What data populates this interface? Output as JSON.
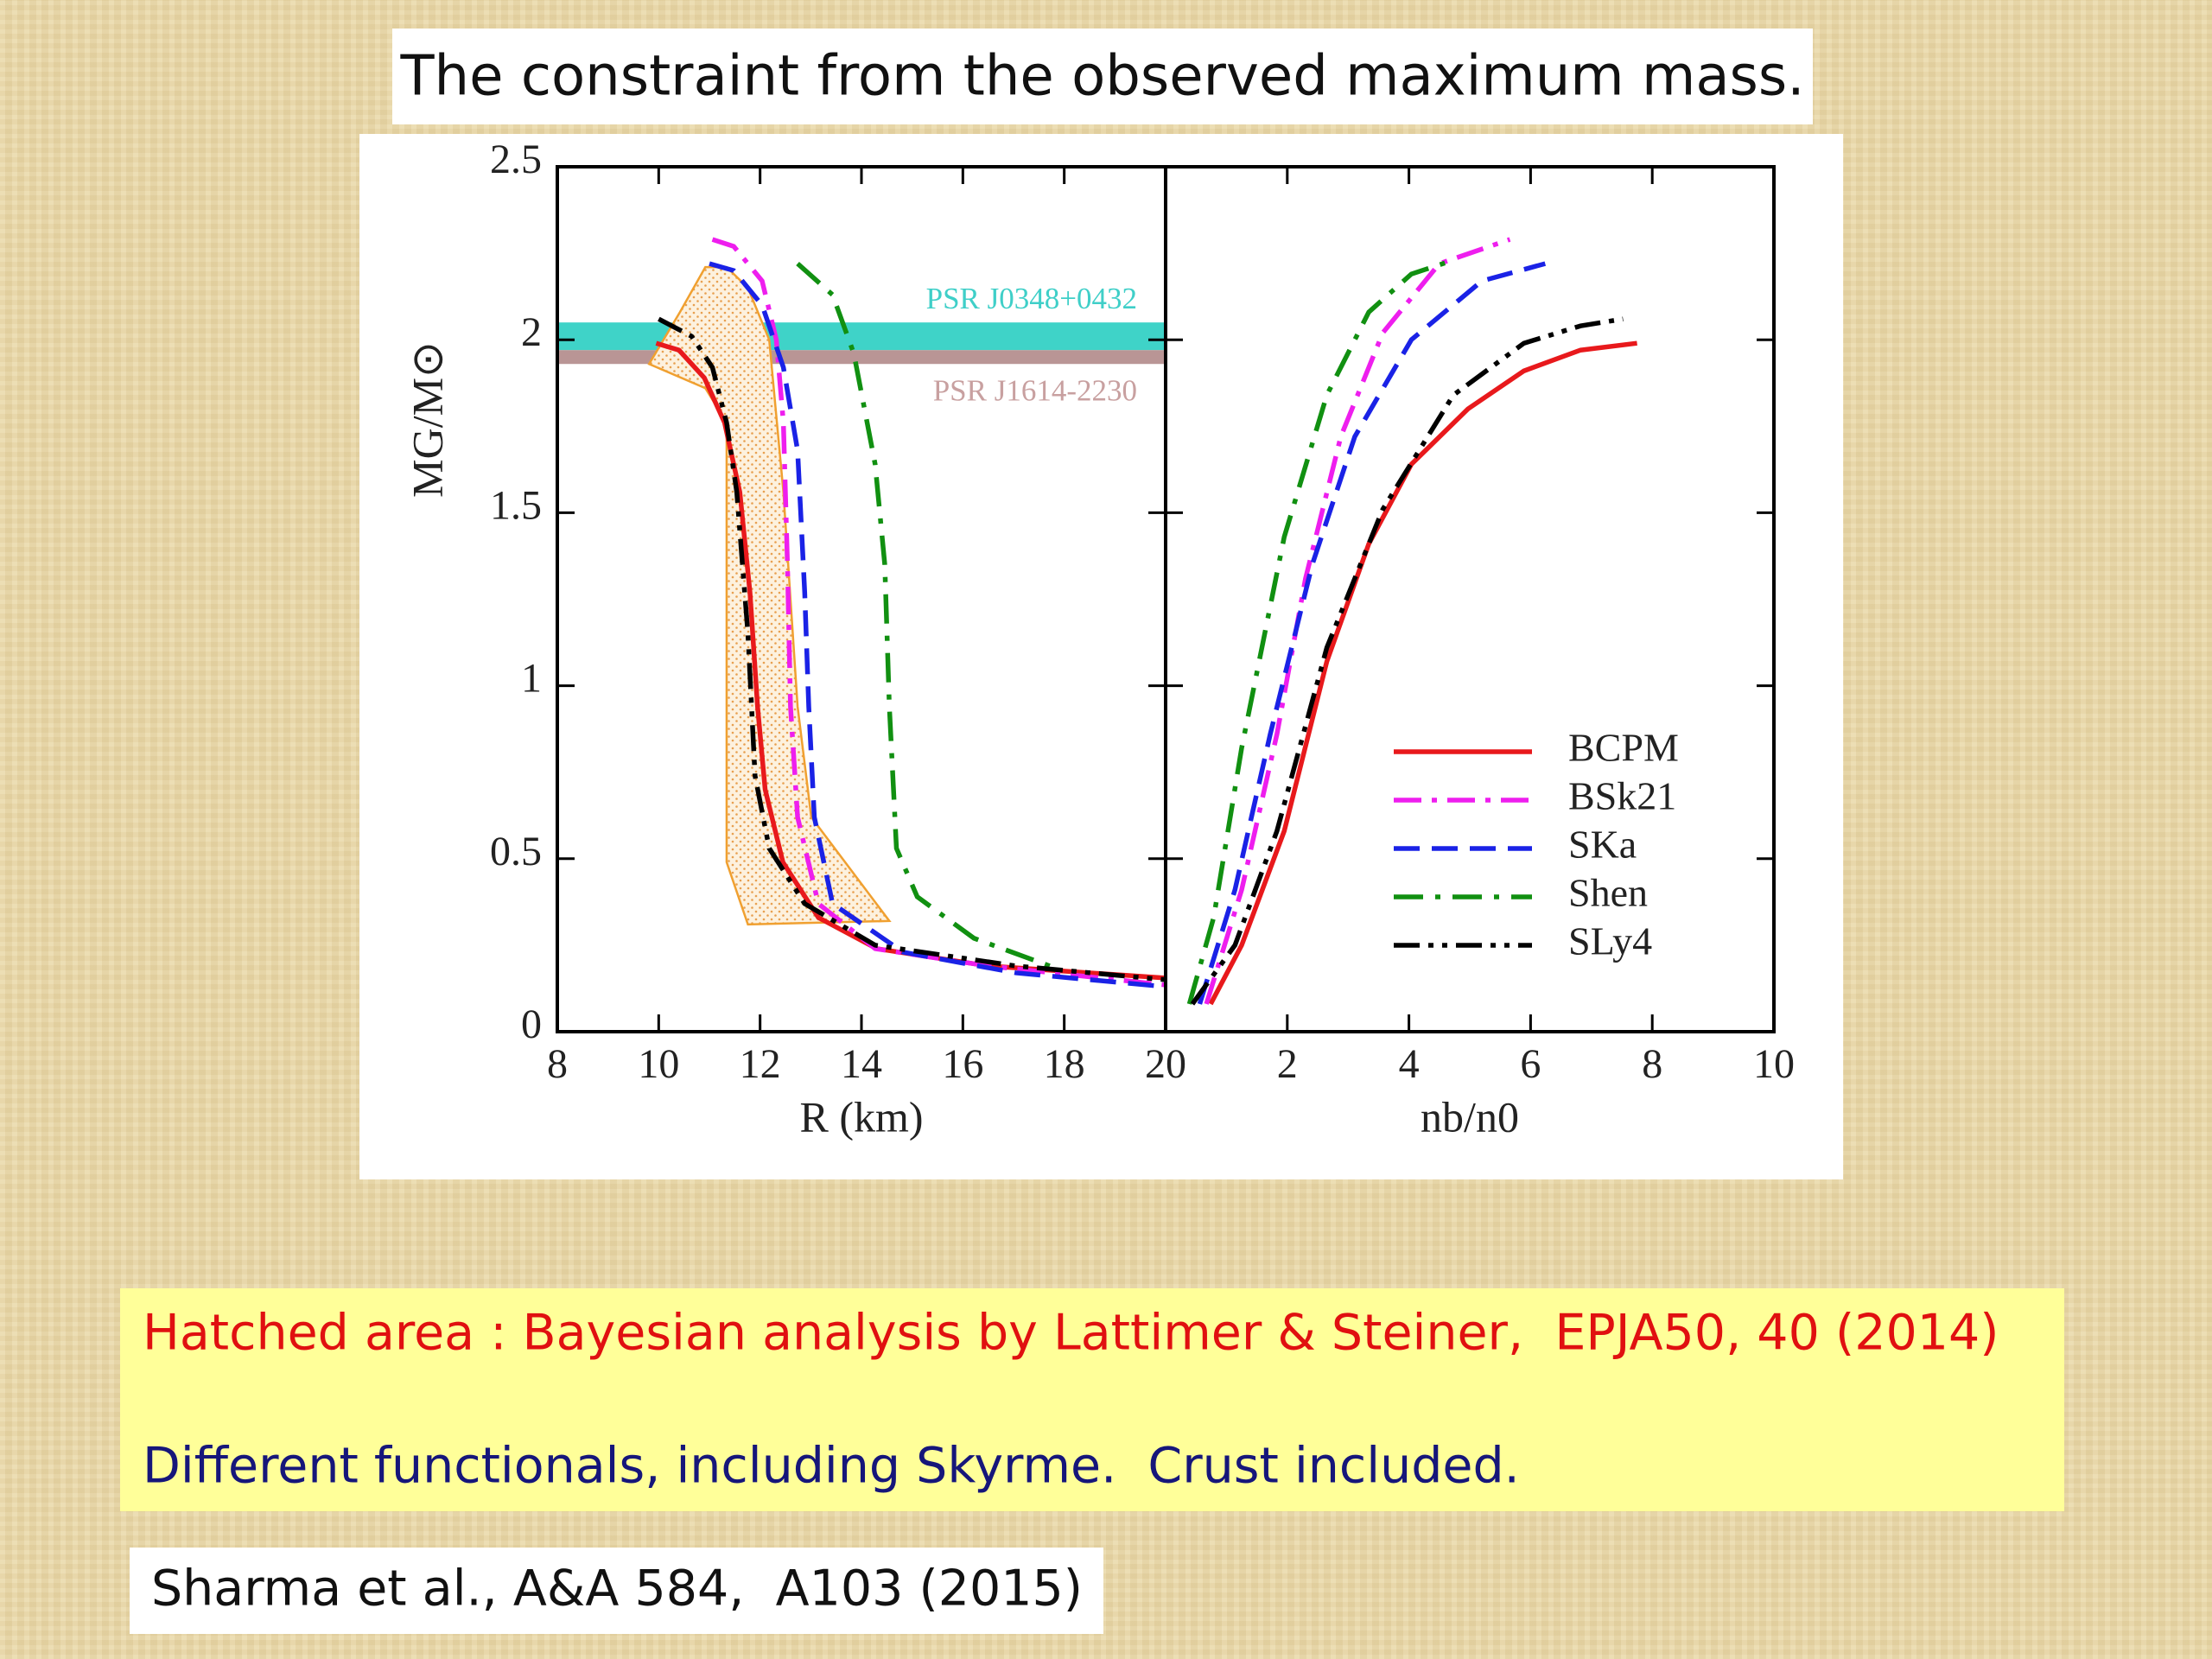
{
  "slide": {
    "title": "The constraint from the observed maximum mass.",
    "notes": [
      "Hatched area : Bayesian analysis by Lattimer & Steiner,  EPJA50, 40 (2014)",
      "Different functionals, including Skyrme.  Crust included."
    ],
    "citation": "Sharma et al., A&A 584,  A103 (2015)"
  },
  "chart_data": [
    {
      "type": "line",
      "xlabel": "R (km)",
      "ylabel": "MG/M⊙",
      "xlim": [
        8,
        20
      ],
      "ylim": [
        0,
        2.5
      ],
      "xticks": [
        8,
        10,
        12,
        14,
        16,
        18,
        20
      ],
      "yticks": [
        0,
        0.5,
        1,
        1.5,
        2,
        2.5
      ],
      "bands": [
        {
          "label": "PSR J0348+0432",
          "range": [
            1.97,
            2.05
          ],
          "color": "#3fd3c8",
          "label_color": "#3fcfc8"
        },
        {
          "label": "PSR J1614-2230",
          "range": [
            1.93,
            1.97
          ],
          "color": "#b99595",
          "label_color": "#c8a0a0"
        }
      ],
      "hatched_area": {
        "color": "#f0a030",
        "x": [
          9.81,
          10.42,
          10.92,
          11.34,
          11.76,
          12.18,
          12.46,
          12.74,
          13.01,
          14.55,
          11.76,
          11.34,
          11.34,
          11.34,
          10.92
        ],
        "y": [
          1.93,
          2.08,
          2.21,
          2.21,
          2.15,
          2.0,
          1.56,
          0.94,
          0.62,
          0.32,
          0.31,
          0.49,
          0.86,
          1.76,
          1.86
        ]
      },
      "series": [
        {
          "color": "#e8191c",
          "style": "solid",
          "x": [
            9.95,
            10.4,
            10.9,
            11.3,
            11.6,
            11.8,
            11.95,
            12.1,
            12.45,
            13.15,
            14.3,
            16.5,
            20
          ],
          "values": [
            1.99,
            1.97,
            1.89,
            1.76,
            1.56,
            1.27,
            0.94,
            0.7,
            0.49,
            0.33,
            0.24,
            0.19,
            0.155
          ]
        },
        {
          "color": "#ee1eee",
          "style": "dash-dot",
          "x": [
            11.06,
            11.48,
            12.04,
            12.32,
            12.46,
            12.54,
            12.6,
            12.74,
            13.15,
            14.27,
            16.5,
            20
          ],
          "values": [
            2.29,
            2.27,
            2.17,
            2.0,
            1.76,
            1.35,
            0.94,
            0.62,
            0.37,
            0.24,
            0.19,
            0.135
          ]
        },
        {
          "color": "#1a22e6",
          "style": "dash",
          "x": [
            11.0,
            11.48,
            12.04,
            12.46,
            12.74,
            12.88,
            12.96,
            13.07,
            13.43,
            14.82,
            17.05,
            20
          ],
          "values": [
            2.22,
            2.2,
            2.1,
            1.92,
            1.68,
            1.27,
            0.94,
            0.62,
            0.37,
            0.23,
            0.17,
            0.13
          ]
        },
        {
          "color": "#119011",
          "style": "dash-dot-wide",
          "x": [
            12.74,
            13.43,
            13.85,
            14.27,
            14.46,
            14.55,
            14.69,
            15.1,
            16.22,
            17.9
          ],
          "values": [
            2.22,
            2.13,
            1.96,
            1.64,
            1.35,
            0.94,
            0.53,
            0.39,
            0.27,
            0.18
          ]
        },
        {
          "color": "#000000",
          "style": "dash-dot-dot",
          "x": [
            10.0,
            10.65,
            11.06,
            11.34,
            11.54,
            11.76,
            11.9,
            12.18,
            12.88,
            14.27,
            17.05,
            20
          ],
          "values": [
            2.06,
            2.01,
            1.92,
            1.76,
            1.56,
            1.15,
            0.74,
            0.53,
            0.37,
            0.25,
            0.19,
            0.15
          ]
        }
      ]
    },
    {
      "type": "line",
      "xlabel": "nb/n0",
      "xlim": [
        0,
        10
      ],
      "ylim": [
        0,
        2.5
      ],
      "xticks": [
        2,
        4,
        6,
        8,
        10
      ],
      "legend": "lower right",
      "series": [
        {
          "name": "BCPM",
          "color": "#e8191c",
          "style": "solid",
          "x": [
            0.74,
            1.25,
            1.95,
            2.65,
            3.34,
            4.04,
            4.97,
            5.89,
            6.82,
            7.75
          ],
          "values": [
            0.08,
            0.25,
            0.58,
            1.07,
            1.41,
            1.64,
            1.8,
            1.91,
            1.97,
            1.99
          ]
        },
        {
          "name": "BSk21",
          "color": "#ee1eee",
          "style": "dash-dot",
          "x": [
            0.67,
            1.25,
            1.83,
            2.3,
            2.88,
            3.57,
            4.5,
            5.66
          ],
          "values": [
            0.08,
            0.41,
            0.86,
            1.31,
            1.72,
            2.02,
            2.22,
            2.29
          ]
        },
        {
          "name": "SKa",
          "color": "#1a22e6",
          "style": "dash",
          "x": [
            0.56,
            1.14,
            1.72,
            2.41,
            3.11,
            4.04,
            5.2,
            6.24
          ],
          "values": [
            0.08,
            0.41,
            0.86,
            1.35,
            1.72,
            2.0,
            2.17,
            2.22
          ]
        },
        {
          "name": "Shen",
          "color": "#119011",
          "style": "dash-dot-wide",
          "x": [
            0.39,
            0.79,
            1.25,
            1.95,
            2.65,
            3.34,
            4.04,
            4.73
          ],
          "values": [
            0.08,
            0.33,
            0.82,
            1.43,
            1.84,
            2.08,
            2.19,
            2.23
          ]
        },
        {
          "name": "SLy4",
          "color": "#000000",
          "style": "dash-dot-dot",
          "x": [
            0.44,
            1.14,
            1.83,
            2.65,
            3.57,
            4.73,
            5.89,
            6.82,
            7.52
          ],
          "values": [
            0.08,
            0.25,
            0.58,
            1.11,
            1.51,
            1.84,
            1.99,
            2.04,
            2.06
          ]
        }
      ]
    }
  ]
}
